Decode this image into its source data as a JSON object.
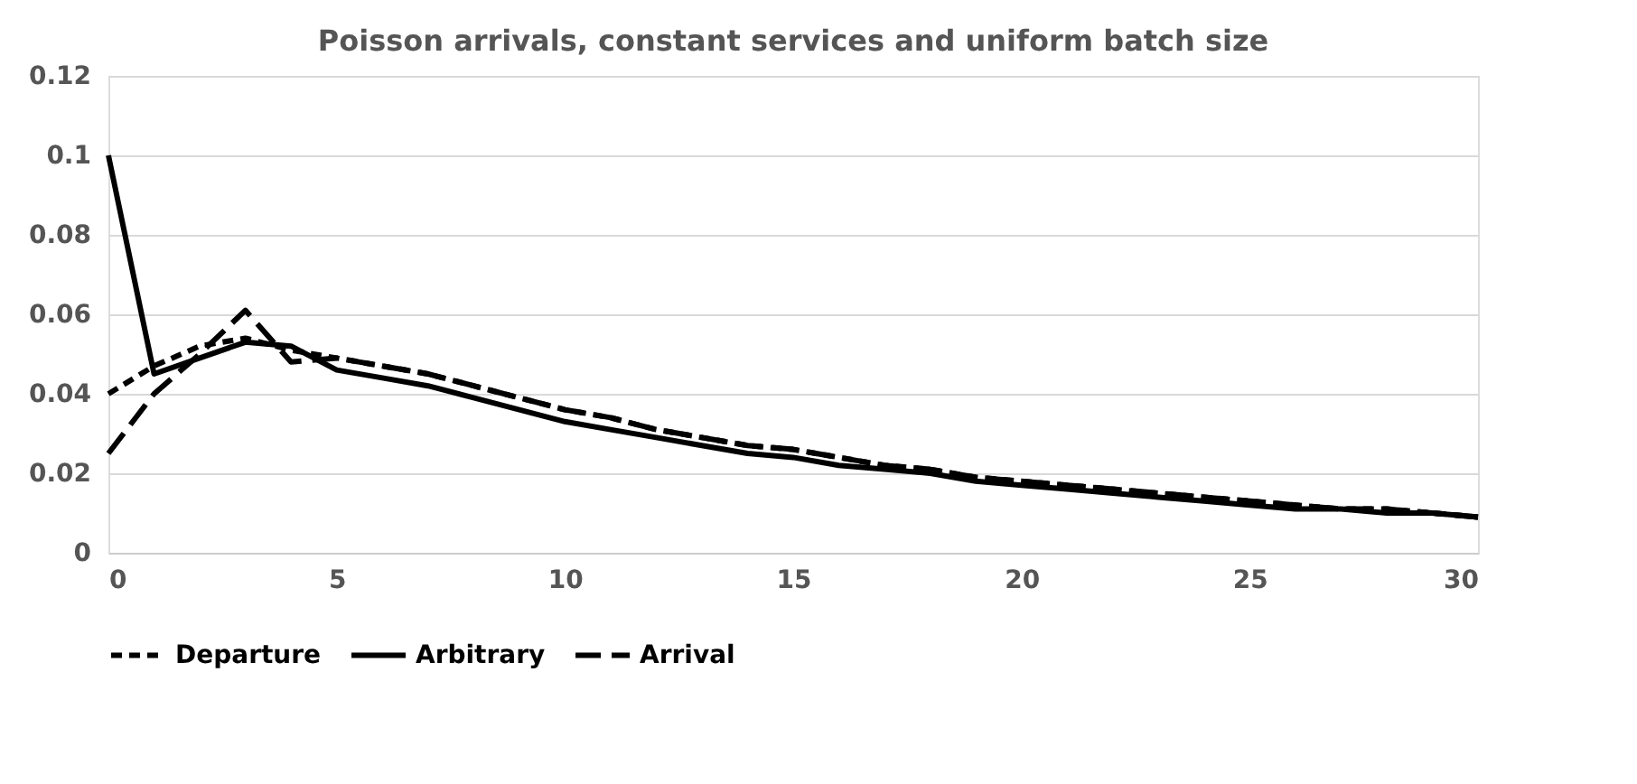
{
  "chart_data": {
    "type": "line",
    "title": "Poisson arrivals, constant services and uniform batch size",
    "x": [
      0,
      1,
      2,
      3,
      4,
      5,
      6,
      7,
      8,
      9,
      10,
      11,
      12,
      13,
      14,
      15,
      16,
      17,
      18,
      19,
      20,
      21,
      22,
      23,
      24,
      25,
      26,
      27,
      28,
      29,
      30
    ],
    "series": [
      {
        "name": "Departure",
        "color": "#000000",
        "line_style": "dotted",
        "values": [
          0.04,
          0.047,
          0.052,
          0.054,
          0.051,
          0.049,
          0.047,
          0.045,
          0.042,
          0.039,
          0.036,
          0.034,
          0.031,
          0.029,
          0.027,
          0.026,
          0.024,
          0.022,
          0.021,
          0.019,
          0.018,
          0.017,
          0.016,
          0.015,
          0.014,
          0.013,
          0.012,
          0.011,
          0.011,
          0.01,
          0.009
        ]
      },
      {
        "name": "Arbitrary",
        "color": "#000000",
        "line_style": "solid",
        "values": [
          0.1,
          0.045,
          0.049,
          0.053,
          0.052,
          0.046,
          0.044,
          0.042,
          0.039,
          0.036,
          0.033,
          0.031,
          0.029,
          0.027,
          0.025,
          0.024,
          0.022,
          0.021,
          0.02,
          0.018,
          0.017,
          0.016,
          0.015,
          0.014,
          0.013,
          0.012,
          0.011,
          0.011,
          0.01,
          0.01,
          0.009
        ]
      },
      {
        "name": "Arrival",
        "color": "#000000",
        "line_style": "dashed",
        "values": [
          0.025,
          0.04,
          0.05,
          0.061,
          0.048,
          0.049,
          0.047,
          0.045,
          0.042,
          0.039,
          0.036,
          0.034,
          0.031,
          0.029,
          0.027,
          0.026,
          0.024,
          0.022,
          0.021,
          0.019,
          0.018,
          0.017,
          0.016,
          0.015,
          0.014,
          0.013,
          0.012,
          0.011,
          0.011,
          0.01,
          0.009
        ]
      }
    ],
    "xlim": [
      0,
      30
    ],
    "xticks": [
      0,
      5,
      10,
      15,
      20,
      25,
      30
    ],
    "ylim": [
      0,
      0.12
    ],
    "yticks": [
      0,
      0.02,
      0.04,
      0.06,
      0.08,
      0.1,
      0.12
    ],
    "grid": "y",
    "legend": "bottom",
    "marker": "none"
  }
}
